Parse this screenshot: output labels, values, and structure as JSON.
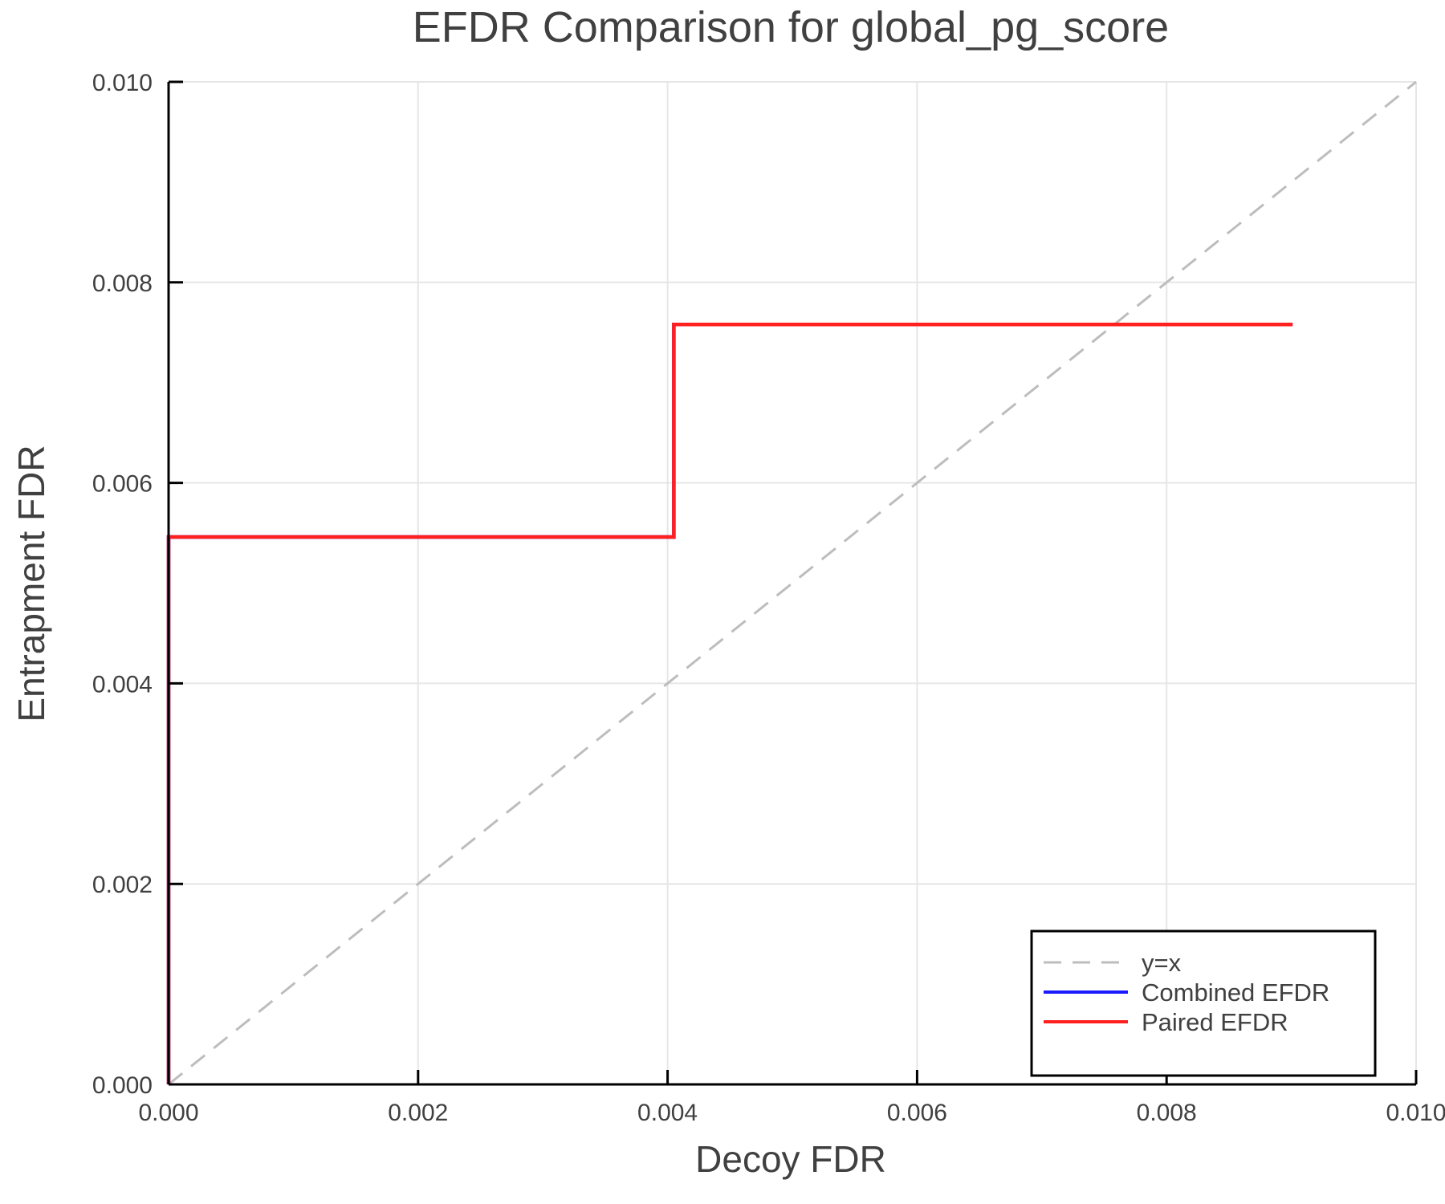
{
  "chart_data": {
    "type": "line",
    "title": "EFDR Comparison for global_pg_score",
    "xlabel": "Decoy FDR",
    "ylabel": "Entrapment FDR",
    "xlim": [
      0.0,
      0.01
    ],
    "ylim": [
      0.0,
      0.01
    ],
    "xticks": [
      "0.000",
      "0.002",
      "0.004",
      "0.006",
      "0.008",
      "0.010"
    ],
    "yticks": [
      "0.000",
      "0.002",
      "0.004",
      "0.006",
      "0.008",
      "0.010"
    ],
    "grid": true,
    "legend_position": "bottom-right",
    "series": [
      {
        "name": "y=x",
        "style": "dashed",
        "color": "#bdbdbd",
        "x": [
          0.0,
          0.01
        ],
        "y": [
          0.0,
          0.01
        ]
      },
      {
        "name": "Combined EFDR",
        "style": "step",
        "color": "#1a1aff",
        "x": [
          0.0,
          0.0,
          0.00405,
          0.00405,
          0.00901
        ],
        "y": [
          0.0,
          0.00546,
          0.00546,
          0.00758,
          0.00758
        ]
      },
      {
        "name": "Paired EFDR",
        "style": "step",
        "color": "#ff2020",
        "x": [
          0.0,
          0.0,
          0.00405,
          0.00405,
          0.00901
        ],
        "y": [
          0.0,
          0.00546,
          0.00546,
          0.00758,
          0.00758
        ]
      }
    ]
  }
}
